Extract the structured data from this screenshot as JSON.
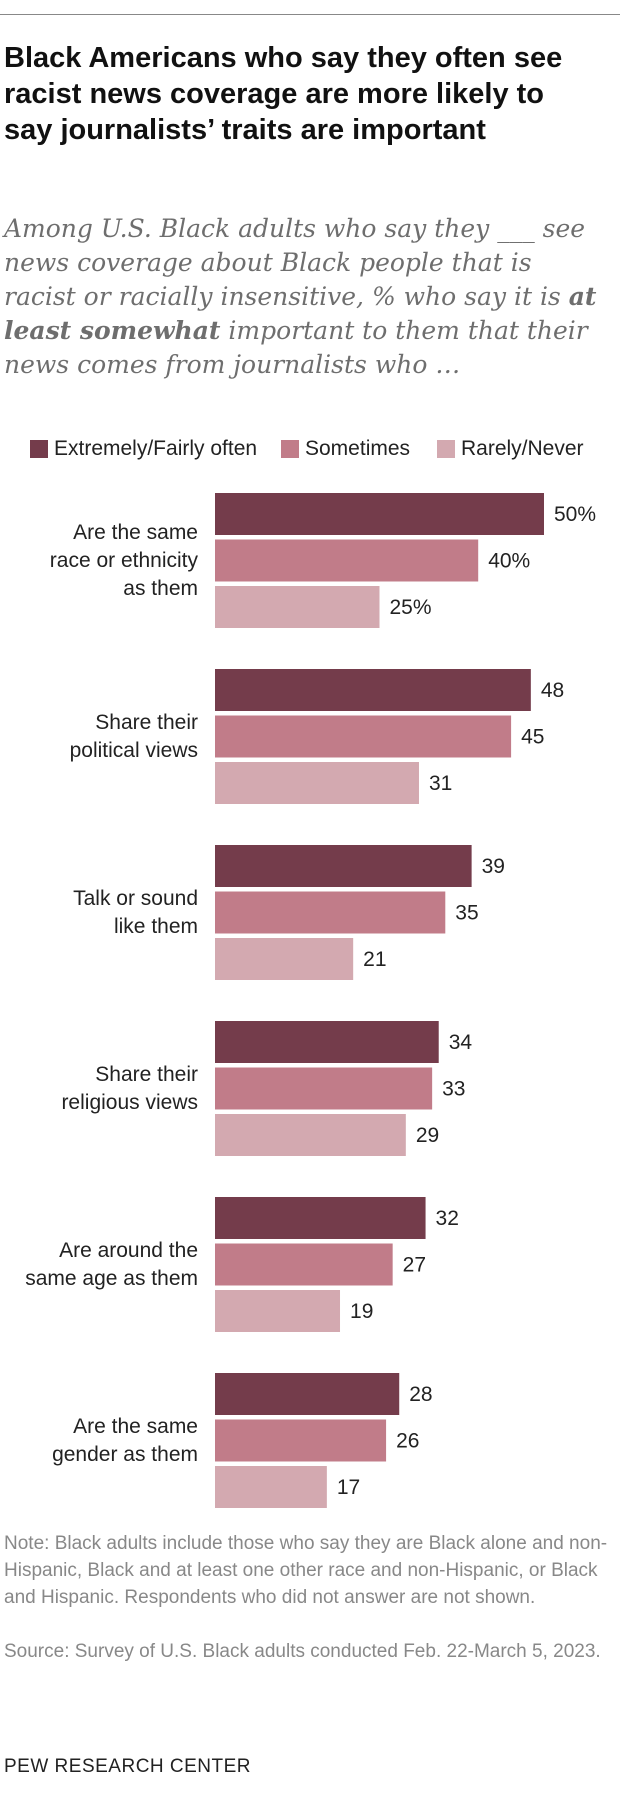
{
  "header": {
    "title": "Black Americans who say they often see racist news coverage are more likely to say journalists’ traits are important",
    "subtitle_before": "Among U.S. Black adults who say they ___ see news coverage about Black people that is racist or racially insensitive, % who say it is ",
    "subtitle_bold": "at least somewhat",
    "subtitle_after": " important to them that their news comes from journalists who …"
  },
  "colors": {
    "extremely_fairly_often": "#743c4b",
    "sometimes": "#c17c89",
    "rarely_never": "#d3a9b0"
  },
  "chart_data": {
    "type": "bar",
    "orientation": "horizontal",
    "title": "Black Americans who say they often see racist news coverage are more likely to say journalists’ traits are important",
    "xlabel": "",
    "ylabel": "",
    "xlim": [
      0,
      50
    ],
    "grid": false,
    "legend_position": "top",
    "categories": [
      "Are the same race or ethnicity as them",
      "Share their political views",
      "Talk or sound like them",
      "Share their religious views",
      "Are around the same age as them",
      "Are the same gender as them"
    ],
    "category_lines": [
      [
        "Are the same",
        "race or ethnicity",
        "as them"
      ],
      [
        "Share their",
        "political views"
      ],
      [
        "Talk or sound",
        "like them"
      ],
      [
        "Share their",
        "religious views"
      ],
      [
        "Are around the",
        "same age as them"
      ],
      [
        "Are the same",
        "gender as them"
      ]
    ],
    "series": [
      {
        "name": "Extremely/Fairly often",
        "color": "#743c4b",
        "values": [
          50,
          48,
          39,
          34,
          32,
          28
        ]
      },
      {
        "name": "Sometimes",
        "color": "#c17c89",
        "values": [
          40,
          45,
          35,
          33,
          27,
          26
        ]
      },
      {
        "name": "Rarely/Never",
        "color": "#d3a9b0",
        "values": [
          25,
          31,
          21,
          29,
          19,
          17
        ]
      }
    ],
    "value_labels": [
      [
        "50%",
        "48",
        "39",
        "34",
        "32",
        "28"
      ],
      [
        "40%",
        "45",
        "35",
        "33",
        "27",
        "26"
      ],
      [
        "25%",
        "31",
        "21",
        "29",
        "19",
        "17"
      ]
    ]
  },
  "footer": {
    "note": "Note: Black adults include those who say they are Black alone and non-Hispanic, Black and at least one other race and non-Hispanic, or Black and Hispanic. Respondents who did not answer are not shown.",
    "source": "Source: Survey of U.S. Black adults conducted Feb. 22-March 5, 2023.",
    "brand": "PEW RESEARCH CENTER"
  }
}
